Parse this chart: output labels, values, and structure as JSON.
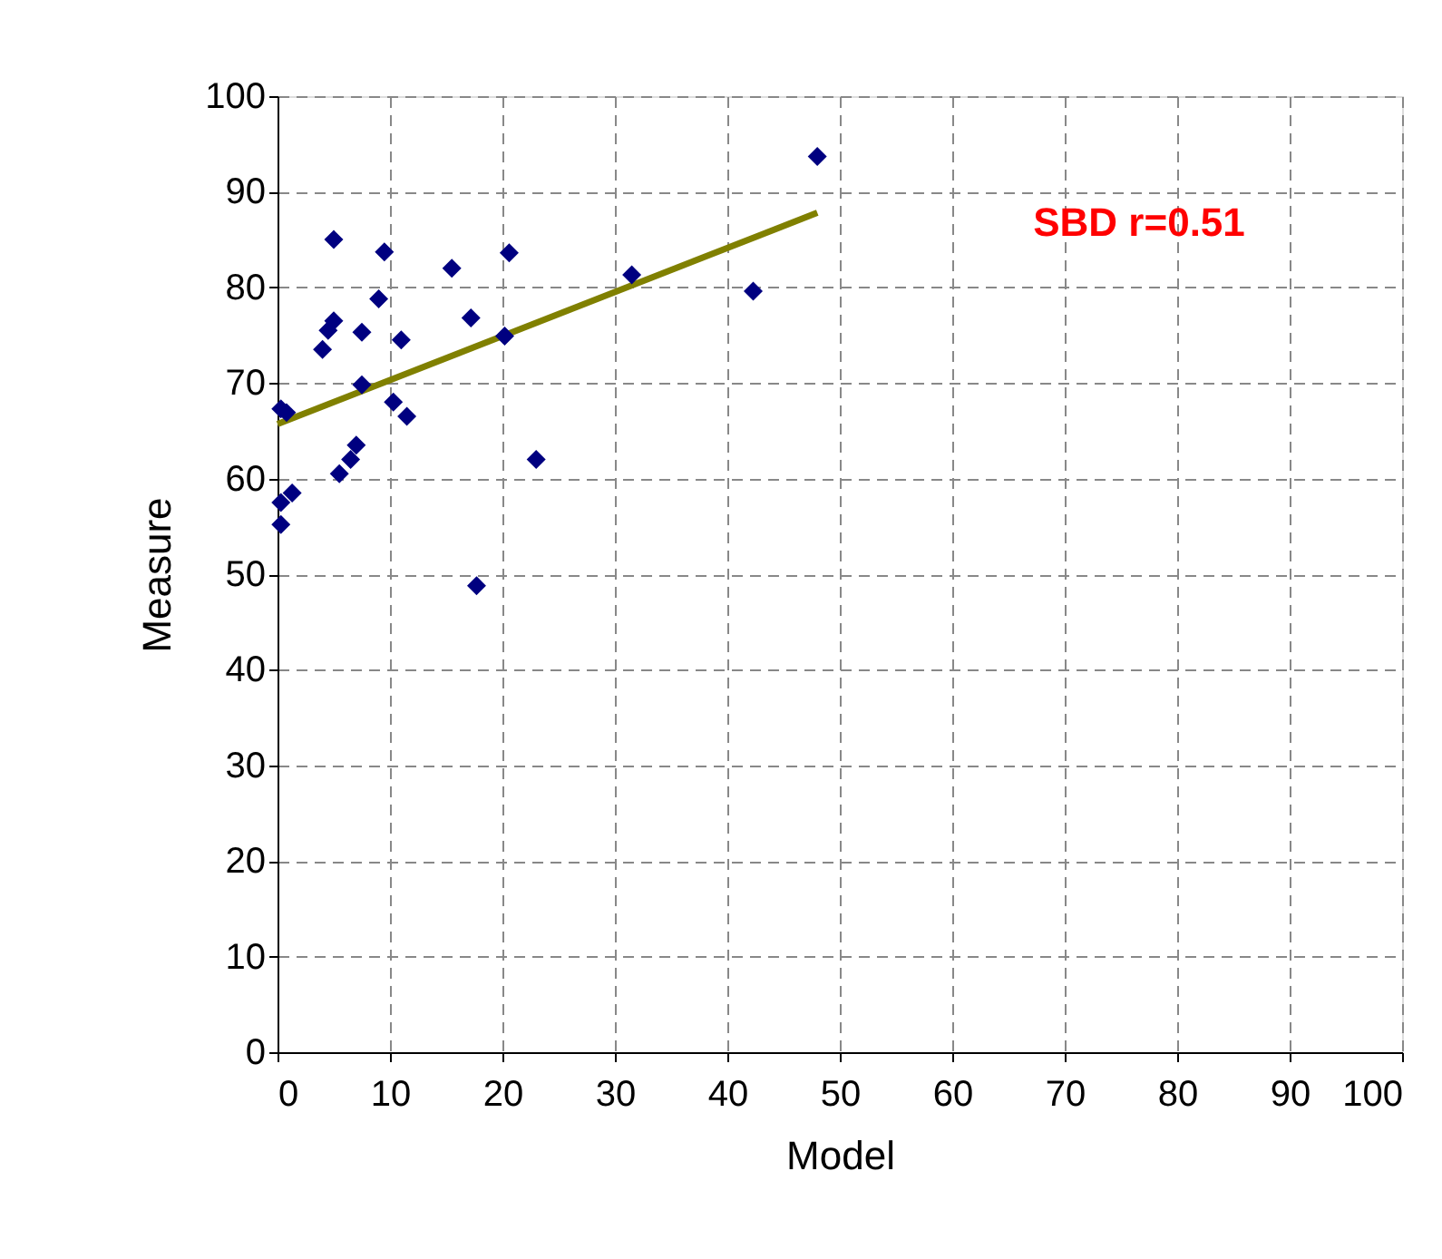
{
  "chart_data": {
    "type": "scatter",
    "xlabel": "Model",
    "ylabel": "Measure",
    "xlim": [
      0,
      100
    ],
    "ylim": [
      0,
      100
    ],
    "xticks": [
      0,
      10,
      20,
      30,
      40,
      50,
      60,
      70,
      80,
      90,
      100
    ],
    "yticks": [
      0,
      10,
      20,
      30,
      40,
      50,
      60,
      70,
      80,
      90,
      100
    ],
    "grid": true,
    "series": [
      {
        "marker": "diamond",
        "color": "#000080",
        "x": [
          0.3,
          0.8,
          0.3,
          1.3,
          0.3,
          4,
          4.5,
          5,
          5,
          5.5,
          6.5,
          7,
          7.5,
          7.5,
          9,
          9.5,
          10.3,
          11,
          11.5,
          15.5,
          17.2,
          17.7,
          20.2,
          20.6,
          23,
          31.5,
          42.3,
          48
        ],
        "values": [
          67.3,
          66.9,
          57.5,
          58.5,
          55.2,
          73.5,
          75.5,
          76.5,
          85,
          60.5,
          62,
          63.5,
          75.3,
          69.8,
          78.8,
          83.7,
          68,
          74.5,
          66.5,
          82,
          76.8,
          48.8,
          74.9,
          83.6,
          62,
          81.3,
          79.6,
          93.7
        ]
      },
      {
        "type": "line",
        "marker": "none",
        "color": "#808000",
        "line_style": "solid",
        "x": [
          0,
          48
        ],
        "values": [
          65.7,
          87.8
        ]
      }
    ],
    "annotations": [
      "SBD r=0.51"
    ]
  }
}
